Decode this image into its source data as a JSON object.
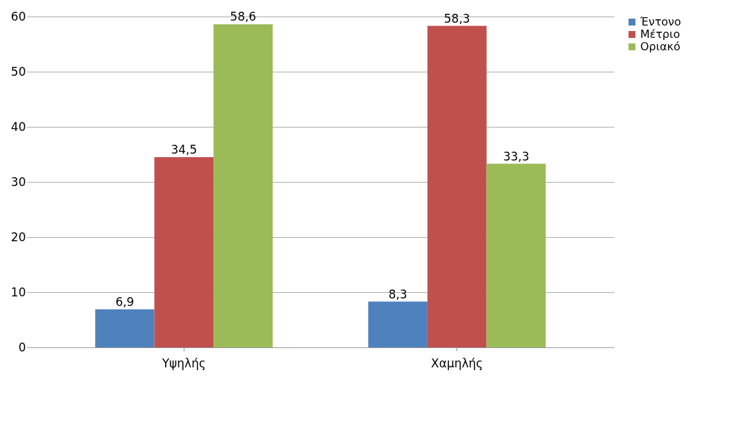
{
  "chart_data": {
    "type": "bar",
    "categories": [
      "Υψηλής",
      "Χαμηλής"
    ],
    "series": [
      {
        "name": "Έντονο",
        "color": "#4f81bd",
        "values": [
          6.9,
          8.3
        ],
        "value_labels": [
          "6,9",
          "8,3"
        ]
      },
      {
        "name": "Μέτριο",
        "color": "#c0504d",
        "values": [
          34.5,
          58.3
        ],
        "value_labels": [
          "34,5",
          "58,3"
        ]
      },
      {
        "name": "Οριακό",
        "color": "#9bbb59",
        "values": [
          58.6,
          33.3
        ],
        "value_labels": [
          "58,6",
          "33,3"
        ]
      }
    ],
    "ylim": [
      0,
      60
    ],
    "yticks": [
      0,
      10,
      20,
      30,
      40,
      50,
      60
    ],
    "grid": "y",
    "legend": "right"
  }
}
